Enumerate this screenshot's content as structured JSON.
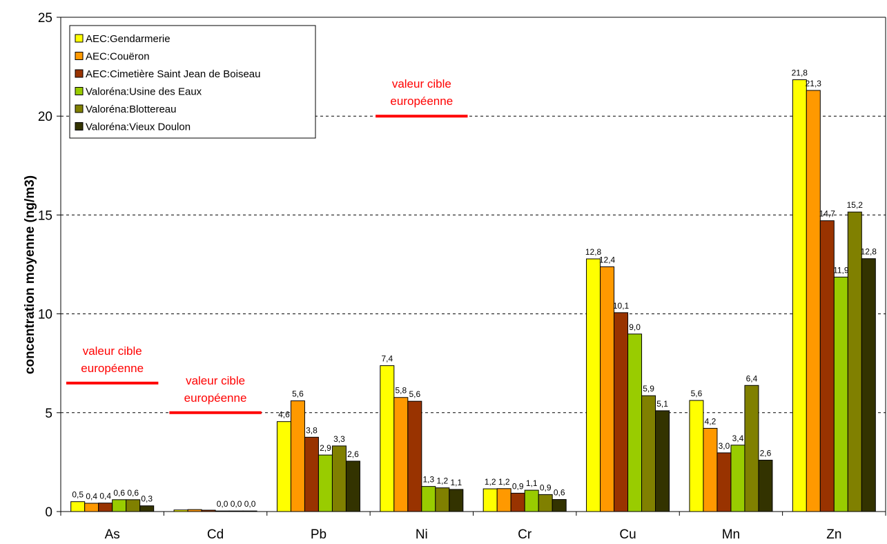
{
  "chart_data": {
    "type": "bar",
    "title": "",
    "xlabel": "",
    "ylabel": "concentration moyenne (ng/m3)",
    "ylim": [
      0,
      25
    ],
    "yticks": [
      0,
      5,
      10,
      15,
      20,
      25
    ],
    "grid": "horizontal dashed",
    "legend_position": "top-left",
    "categories": [
      "As",
      "Cd",
      "Pb",
      "Ni",
      "Cr",
      "Cu",
      "Mn",
      "Zn"
    ],
    "series": [
      {
        "name": "AEC:Gendarmerie",
        "color": "#ffff00",
        "values": [
          0.5,
          0.08,
          4.55,
          7.38,
          1.15,
          12.78,
          5.62,
          21.84
        ],
        "labels": [
          "0,5",
          "",
          "4,6",
          "7,4",
          "1,2",
          "12,8",
          "5,6",
          "21,8"
        ]
      },
      {
        "name": "AEC:Couëron",
        "color": "#ff9900",
        "values": [
          0.42,
          0.1,
          5.6,
          5.77,
          1.16,
          12.38,
          4.21,
          21.3
        ],
        "labels": [
          "0,4",
          "",
          "5,6",
          "5,8",
          "1,2",
          "12,4",
          "4,2",
          "21,3"
        ]
      },
      {
        "name": "AEC:Cimetière Saint Jean de Boiseau",
        "color": "#993300",
        "values": [
          0.43,
          0.07,
          3.76,
          5.58,
          0.93,
          10.06,
          2.97,
          14.71
        ],
        "labels": [
          "0,4",
          "",
          "3,8",
          "5,6",
          "0,9",
          "10,1",
          "3,0",
          "14,7"
        ]
      },
      {
        "name": "Valoréna:Usine des Eaux",
        "color": "#99cc00",
        "values": [
          0.6,
          0.03,
          2.86,
          1.27,
          1.08,
          8.98,
          3.36,
          11.86
        ],
        "labels": [
          "0,6",
          "0,0",
          "2,9",
          "1,3",
          "1,1",
          "9,0",
          "3,4",
          "11,9"
        ]
      },
      {
        "name": "Valoréna:Blottereau",
        "color": "#808000",
        "values": [
          0.6,
          0.03,
          3.32,
          1.2,
          0.86,
          5.86,
          6.38,
          15.15
        ],
        "labels": [
          "0,6",
          "0,0",
          "3,3",
          "1,2",
          "0,9",
          "5,9",
          "6,4",
          "15,2"
        ]
      },
      {
        "name": "Valoréna:Vieux Doulon",
        "color": "#333300",
        "values": [
          0.29,
          0.03,
          2.55,
          1.12,
          0.61,
          5.1,
          2.6,
          12.79
        ],
        "labels": [
          "0,3",
          "0,0",
          "2,6",
          "1,1",
          "0,6",
          "5,1",
          "2,6",
          "12,8"
        ]
      }
    ],
    "target_values": [
      {
        "category_from": 0,
        "category_to": 0,
        "value": 6.5,
        "color": "#ff0000",
        "label_lines": [
          "valeur cible",
          "européenne"
        ]
      },
      {
        "category_from": 1,
        "category_to": 1,
        "value": 5,
        "color": "#ff0000",
        "label_lines": [
          "valeur cible",
          "européenne"
        ]
      },
      {
        "category_from": 3,
        "category_to": 3,
        "value": 20,
        "color": "#ff0000",
        "label_lines": [
          "valeur cible",
          "européenne"
        ]
      }
    ]
  }
}
